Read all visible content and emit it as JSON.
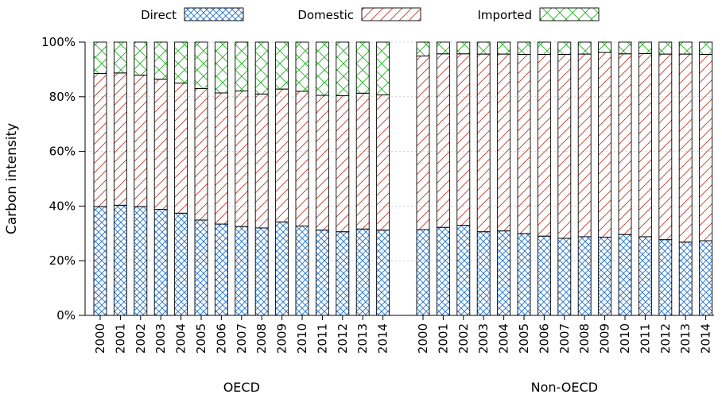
{
  "chart_data": {
    "type": "bar",
    "stacked": true,
    "ylabel": "Carbon intensity",
    "ylim": [
      0,
      100
    ],
    "yticks": [
      "0%",
      "20%",
      "40%",
      "60%",
      "80%",
      "100%"
    ],
    "legend": {
      "placement": "top",
      "entries": [
        "Direct",
        "Domestic",
        "Imported"
      ]
    },
    "grid": true,
    "series": [
      {
        "name": "Direct",
        "color": "#1f6fd1",
        "pattern": "crosshatch"
      },
      {
        "name": "Domestic",
        "color": "#c0392b",
        "pattern": "diagonal"
      },
      {
        "name": "Imported",
        "color": "#1db31d",
        "pattern": "cross"
      }
    ],
    "groups": [
      {
        "label": "OECD",
        "categories": [
          "2000",
          "2001",
          "2002",
          "2003",
          "2004",
          "2005",
          "2006",
          "2007",
          "2008",
          "2009",
          "2010",
          "2011",
          "2012",
          "2013",
          "2014"
        ],
        "direct": [
          39.8,
          40.3,
          39.8,
          38.8,
          37.4,
          34.9,
          33.4,
          32.5,
          32.0,
          34.2,
          32.7,
          31.2,
          30.6,
          31.6,
          31.2
        ],
        "domestic": [
          48.7,
          48.4,
          48.1,
          47.6,
          47.6,
          48.1,
          48.0,
          49.6,
          49.0,
          48.6,
          49.3,
          49.3,
          49.8,
          49.7,
          49.5
        ],
        "imported": [
          11.5,
          11.3,
          12.1,
          13.6,
          15.0,
          17.0,
          18.6,
          17.9,
          19.0,
          17.2,
          18.0,
          19.5,
          19.6,
          18.7,
          19.3
        ]
      },
      {
        "label": "Non-OECD",
        "categories": [
          "2000",
          "2001",
          "2002",
          "2003",
          "2004",
          "2005",
          "2006",
          "2007",
          "2008",
          "2009",
          "2010",
          "2011",
          "2012",
          "2013",
          "2014"
        ],
        "direct": [
          31.4,
          32.2,
          33.0,
          30.6,
          30.9,
          29.9,
          29.0,
          28.2,
          28.8,
          28.6,
          29.6,
          28.8,
          27.7,
          26.8,
          27.3
        ],
        "domestic": [
          63.5,
          63.5,
          62.7,
          65.0,
          64.7,
          65.6,
          66.5,
          67.3,
          66.8,
          67.6,
          66.1,
          67.0,
          67.9,
          68.8,
          68.2
        ],
        "imported": [
          5.1,
          4.3,
          4.3,
          4.4,
          4.4,
          4.5,
          4.5,
          4.5,
          4.4,
          3.8,
          4.3,
          4.2,
          4.4,
          4.4,
          4.5
        ]
      }
    ]
  }
}
